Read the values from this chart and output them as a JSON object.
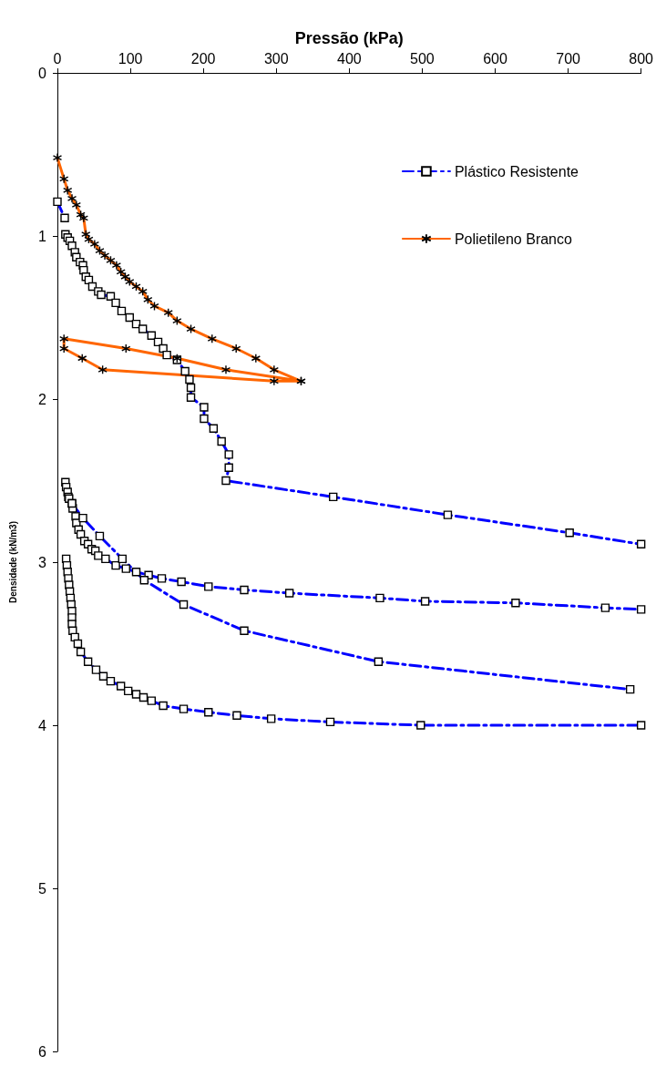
{
  "chart_data": {
    "type": "line",
    "xlabel": "Pressão (kPa)",
    "ylabel": "Densidade (kN/m3)",
    "xlim": [
      0,
      800
    ],
    "xticks": [
      0,
      100,
      200,
      300,
      400,
      500,
      600,
      700,
      800
    ],
    "ylim": [
      6,
      0
    ],
    "yticks": [
      0,
      1,
      2,
      3,
      4,
      5,
      6
    ],
    "grid": false,
    "legend": "top right",
    "series": [
      {
        "name": "Plástico Resistente",
        "color": "#0000ff",
        "marker": "square",
        "line_style": "dashed",
        "x": [
          0,
          10,
          null,
          11,
          14,
          17,
          20,
          24,
          26,
          31,
          35,
          36,
          39,
          43,
          48,
          56,
          60,
          73,
          80,
          88,
          99,
          108,
          117,
          129,
          138,
          145,
          150,
          164,
          175,
          181,
          183,
          183,
          201,
          201,
          214,
          225,
          235,
          235,
          231,
          378,
          535,
          702,
          800,
          null,
          11,
          12,
          14,
          15,
          16,
          20,
          21,
          25,
          26,
          29,
          32,
          37,
          42,
          47,
          52,
          56,
          66,
          80,
          94,
          108,
          125,
          143,
          170,
          207,
          256,
          318,
          442,
          504,
          628,
          751,
          800,
          null,
          20,
          35,
          58,
          89,
          119,
          173,
          256,
          440,
          785,
          null,
          12,
          13,
          14,
          15,
          16,
          17,
          18,
          19,
          20,
          20,
          20,
          21,
          24,
          28,
          32,
          42,
          53,
          63,
          73,
          87,
          97,
          108,
          118,
          129,
          145,
          173,
          207,
          246,
          293,
          374,
          498,
          800
        ],
        "values": [
          0.79,
          0.89,
          null,
          0.99,
          1.01,
          1.03,
          1.06,
          1.1,
          1.13,
          1.16,
          1.18,
          1.21,
          1.25,
          1.27,
          1.31,
          1.34,
          1.36,
          1.37,
          1.41,
          1.46,
          1.5,
          1.54,
          1.57,
          1.61,
          1.65,
          1.69,
          1.73,
          1.76,
          1.83,
          1.88,
          1.93,
          1.99,
          2.05,
          2.12,
          2.18,
          2.26,
          2.34,
          2.42,
          2.5,
          2.6,
          2.71,
          2.82,
          2.89,
          null,
          2.51,
          2.54,
          2.57,
          2.6,
          2.61,
          2.64,
          2.67,
          2.72,
          2.76,
          2.8,
          2.83,
          2.87,
          2.89,
          2.92,
          2.93,
          2.96,
          2.98,
          3.02,
          3.04,
          3.06,
          3.08,
          3.1,
          3.12,
          3.15,
          3.17,
          3.19,
          3.22,
          3.24,
          3.25,
          3.28,
          3.29,
          null,
          2.64,
          2.73,
          2.84,
          2.98,
          3.11,
          3.26,
          3.42,
          3.61,
          3.78,
          null,
          2.98,
          3.02,
          3.06,
          3.1,
          3.14,
          3.18,
          3.22,
          3.26,
          3.3,
          3.34,
          3.38,
          3.42,
          3.46,
          3.5,
          3.55,
          3.61,
          3.66,
          3.7,
          3.73,
          3.76,
          3.79,
          3.81,
          3.83,
          3.85,
          3.88,
          3.9,
          3.92,
          3.94,
          3.96,
          3.98,
          4.0,
          4.0
        ]
      },
      {
        "name": "Polietileno Branco",
        "color": "#ff6600",
        "marker": "cross",
        "line_style": "solid",
        "x": [
          0,
          9,
          14,
          20,
          26,
          32,
          36,
          39,
          43,
          51,
          58,
          65,
          73,
          81,
          87,
          93,
          99,
          108,
          117,
          124,
          133,
          152,
          164,
          183,
          212,
          245,
          272,
          297,
          334,
          231,
          164,
          94,
          9,
          9,
          34,
          62,
          297,
          334
        ],
        "values": [
          0.52,
          0.65,
          0.72,
          0.77,
          0.81,
          0.87,
          0.89,
          0.99,
          1.02,
          1.05,
          1.09,
          1.12,
          1.15,
          1.18,
          1.22,
          1.25,
          1.28,
          1.31,
          1.34,
          1.39,
          1.43,
          1.47,
          1.52,
          1.57,
          1.63,
          1.69,
          1.75,
          1.82,
          1.89,
          1.82,
          1.75,
          1.69,
          1.63,
          1.69,
          1.75,
          1.82,
          1.89,
          1.89
        ]
      }
    ]
  }
}
